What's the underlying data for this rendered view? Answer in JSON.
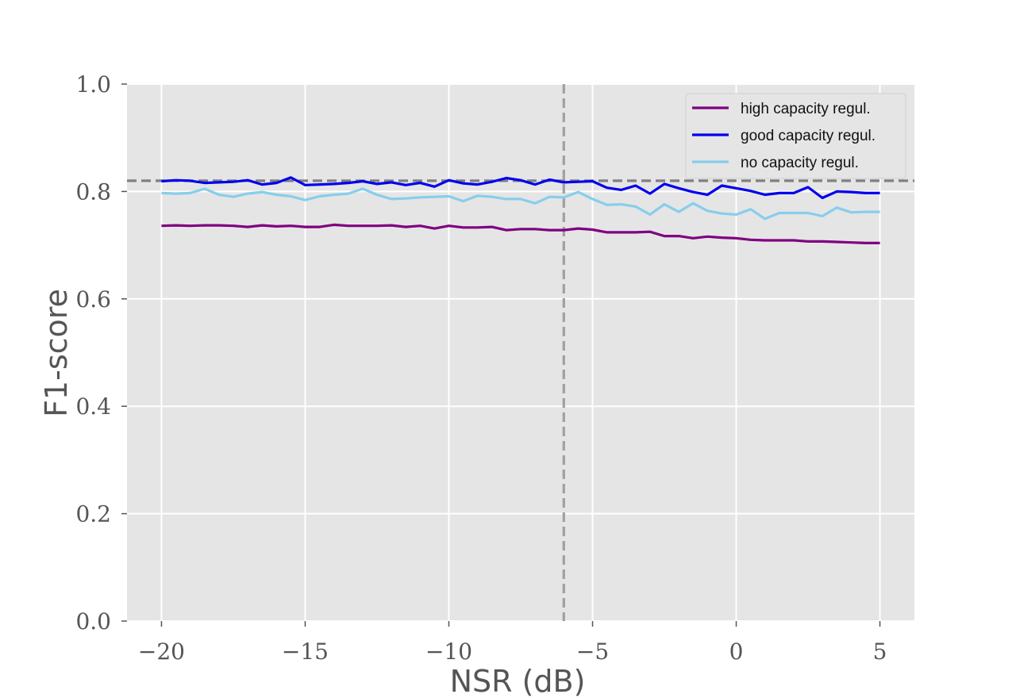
{
  "chart_data": {
    "type": "line",
    "xlabel": "NSR (dB)",
    "ylabel": "F1-score",
    "xlim": [
      -21.2,
      6.2
    ],
    "ylim": [
      0.0,
      1.0
    ],
    "grid": true,
    "background": "#e5e5e5",
    "xticks": [
      -20,
      -15,
      -10,
      -5,
      0,
      5
    ],
    "xtick_labels": [
      "−20",
      "−15",
      "−10",
      "−5",
      "0",
      "5"
    ],
    "yticks": [
      0.0,
      0.2,
      0.4,
      0.6,
      0.8,
      1.0
    ],
    "ytick_labels": [
      "0.0",
      "0.2",
      "0.4",
      "0.6",
      "0.8",
      "1.0"
    ],
    "reference_lines": {
      "horizontal_y": 0.82,
      "vertical_x": -6,
      "color": "#808080",
      "vertical_color": "#a0a0a0"
    },
    "legend": {
      "position": "top-right",
      "entries": [
        "high capacity regul.",
        "good capacity regul.",
        "no capacity regul."
      ]
    },
    "x": [
      -20,
      -19.5,
      -19,
      -18.5,
      -18,
      -17.5,
      -17,
      -16.5,
      -16,
      -15.5,
      -15,
      -14.5,
      -14,
      -13.5,
      -13,
      -12.5,
      -12,
      -11.5,
      -11,
      -10.5,
      -10,
      -9.5,
      -9,
      -8.5,
      -8,
      -7.5,
      -7,
      -6.5,
      -6,
      -5.5,
      -5,
      -4.5,
      -4,
      -3.5,
      -3,
      -2.5,
      -2,
      -1.5,
      -1,
      -0.5,
      0,
      0.5,
      1,
      1.5,
      2,
      2.5,
      3,
      3.5,
      4,
      4.5,
      5
    ],
    "series": [
      {
        "name": "high capacity regul.",
        "color": "#800080",
        "values": [
          0.736,
          0.737,
          0.736,
          0.737,
          0.737,
          0.736,
          0.734,
          0.737,
          0.735,
          0.736,
          0.734,
          0.734,
          0.738,
          0.736,
          0.736,
          0.736,
          0.737,
          0.734,
          0.736,
          0.731,
          0.736,
          0.733,
          0.733,
          0.734,
          0.728,
          0.73,
          0.73,
          0.728,
          0.728,
          0.731,
          0.729,
          0.724,
          0.724,
          0.724,
          0.725,
          0.717,
          0.717,
          0.713,
          0.716,
          0.714,
          0.713,
          0.71,
          0.709,
          0.709,
          0.709,
          0.707,
          0.707,
          0.706,
          0.705,
          0.704,
          0.704
        ]
      },
      {
        "name": "good capacity regul.",
        "color": "#0000ee",
        "values": [
          0.819,
          0.821,
          0.82,
          0.816,
          0.817,
          0.818,
          0.821,
          0.813,
          0.816,
          0.826,
          0.812,
          0.813,
          0.814,
          0.816,
          0.819,
          0.814,
          0.817,
          0.812,
          0.816,
          0.809,
          0.821,
          0.815,
          0.813,
          0.818,
          0.825,
          0.821,
          0.813,
          0.822,
          0.817,
          0.818,
          0.819,
          0.807,
          0.803,
          0.811,
          0.796,
          0.814,
          0.806,
          0.799,
          0.794,
          0.811,
          0.806,
          0.801,
          0.794,
          0.797,
          0.797,
          0.808,
          0.788,
          0.8,
          0.799,
          0.797,
          0.797
        ]
      },
      {
        "name": "no capacity regul.",
        "color": "#87ceeb",
        "values": [
          0.797,
          0.796,
          0.797,
          0.805,
          0.794,
          0.79,
          0.796,
          0.799,
          0.794,
          0.791,
          0.784,
          0.791,
          0.794,
          0.796,
          0.805,
          0.794,
          0.786,
          0.787,
          0.789,
          0.79,
          0.791,
          0.782,
          0.792,
          0.79,
          0.786,
          0.786,
          0.778,
          0.79,
          0.789,
          0.799,
          0.786,
          0.775,
          0.776,
          0.772,
          0.757,
          0.776,
          0.762,
          0.778,
          0.764,
          0.759,
          0.757,
          0.767,
          0.749,
          0.76,
          0.76,
          0.76,
          0.754,
          0.77,
          0.761,
          0.762,
          0.762
        ]
      }
    ]
  }
}
